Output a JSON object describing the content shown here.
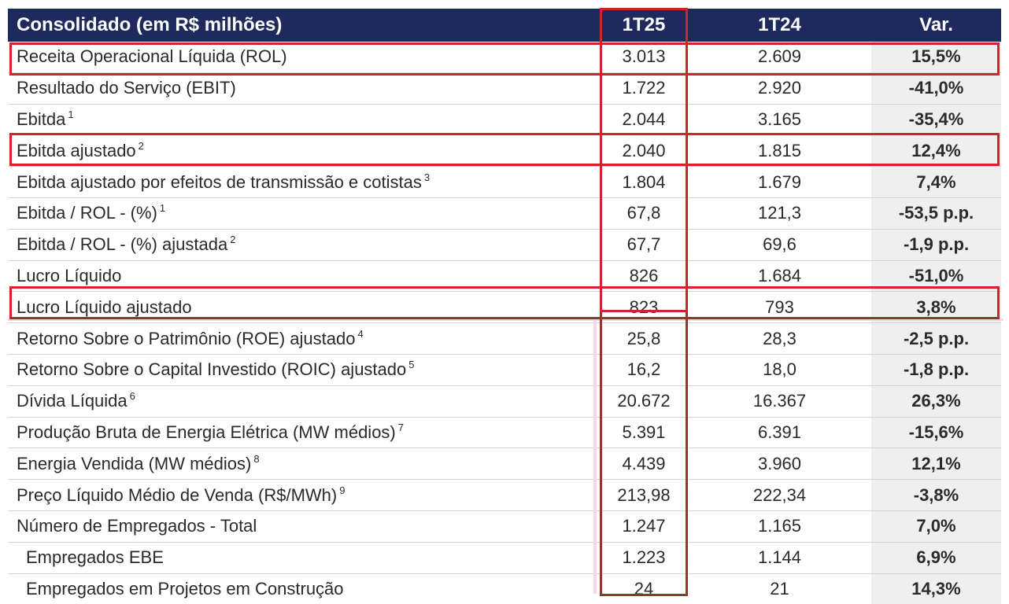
{
  "table": {
    "headers": [
      "Consolidado (em R$ milhões)",
      "1T25",
      "1T24",
      "Var."
    ],
    "rows": [
      {
        "label": "Receita Operacional Líquida (ROL)",
        "note": "",
        "cur": "3.013",
        "prev": "2.609",
        "var": "15,5%"
      },
      {
        "label": "Resultado do Serviço (EBIT)",
        "note": "",
        "cur": "1.722",
        "prev": "2.920",
        "var": "-41,0%"
      },
      {
        "label": "Ebitda",
        "note": "1",
        "cur": "2.044",
        "prev": "3.165",
        "var": "-35,4%"
      },
      {
        "label": "Ebitda ajustado",
        "note": "2",
        "cur": "2.040",
        "prev": "1.815",
        "var": "12,4%"
      },
      {
        "label": "Ebitda ajustado por efeitos de transmissão e cotistas",
        "note": "3",
        "cur": "1.804",
        "prev": "1.679",
        "var": "7,4%"
      },
      {
        "label": "Ebitda / ROL - (%)",
        "note": "1",
        "cur": "67,8",
        "prev": "121,3",
        "var": "-53,5 p.p."
      },
      {
        "label": "Ebitda / ROL - (%) ajustada",
        "note": "2",
        "cur": "67,7",
        "prev": "69,6",
        "var": "-1,9 p.p."
      },
      {
        "label": "Lucro Líquido",
        "note": "",
        "cur": "826",
        "prev": "1.684",
        "var": "-51,0%"
      },
      {
        "label": "Lucro Líquido ajustado",
        "note": "",
        "cur": "823",
        "prev": "793",
        "var": "3,8%"
      },
      {
        "label": "Retorno Sobre o Patrimônio (ROE) ajustado",
        "note": "4",
        "cur": "25,8",
        "prev": "28,3",
        "var": "-2,5 p.p."
      },
      {
        "label": "Retorno Sobre o Capital Investido (ROIC) ajustado",
        "note": "5",
        "cur": "16,2",
        "prev": "18,0",
        "var": "-1,8 p.p."
      },
      {
        "label": "Dívida Líquida",
        "note": "6",
        "cur": "20.672",
        "prev": "16.367",
        "var": "26,3%"
      },
      {
        "label": "Produção Bruta de Energia Elétrica (MW médios)",
        "note": "7",
        "cur": "5.391",
        "prev": "6.391",
        "var": "-15,6%"
      },
      {
        "label": "Energia Vendida (MW médios)",
        "note": "8",
        "cur": "4.439",
        "prev": "3.960",
        "var": "12,1%"
      },
      {
        "label": "Preço Líquido Médio de Venda (R$/MWh)",
        "note": "9",
        "cur": "213,98",
        "prev": "222,34",
        "var": "-3,8%"
      },
      {
        "label": "Número de Empregados - Total",
        "note": "",
        "cur": "1.247",
        "prev": "1.165",
        "var": "7,0%"
      },
      {
        "label": "Empregados EBE",
        "note": "",
        "cur": "1.223",
        "prev": "1.144",
        "var": "6,9%"
      },
      {
        "label": "Empregados em Projetos em Construção",
        "note": "",
        "cur": "24",
        "prev": "21",
        "var": "14,3%"
      }
    ],
    "highlighted_rows": [
      "Receita Operacional Líquida (ROL)",
      "Ebitda ajustado",
      "Lucro Líquido ajustado"
    ],
    "highlighted_column": "1T25",
    "colors": {
      "header_bg": "#1e2a5e",
      "highlight": "#d6202b",
      "var_bg": "#efefef"
    }
  }
}
